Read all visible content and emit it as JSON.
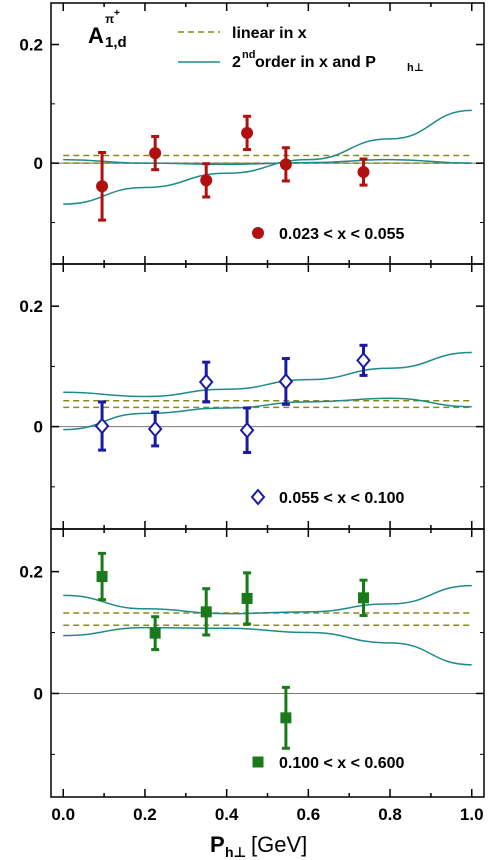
{
  "colors": {
    "frame": "#000000",
    "curve": "#1f8a8a",
    "linear": "#8a8a1a",
    "zero_line": "#777777",
    "panel1_points": "#b01010",
    "panel2_points": "#1a1aa6",
    "panel3_points": "#1a7a1a"
  },
  "asymmetry_label": {
    "main": "A",
    "sup": "π",
    "sup_plus": "+",
    "sub": "1,d"
  },
  "legend": {
    "linear_label": "linear in x",
    "second_order_label_a": "2",
    "second_order_label_sup": "nd",
    "second_order_label_b": " order in x and P",
    "second_order_label_sub": "h⊥"
  },
  "x_axis": {
    "title_main": "P",
    "title_sub": "h⊥",
    "title_unit": "[GeV]",
    "ticks": [
      "0.0",
      "0.2",
      "0.4",
      "0.6",
      "0.8",
      "1.0"
    ]
  },
  "chart_data": [
    {
      "type": "scatter",
      "x_range_label": "0.023 < x < 0.055",
      "marker": "filled-circle",
      "xlim": [
        -0.03,
        1.03
      ],
      "ylim": [
        -0.17,
        0.27
      ],
      "y_ticks": [
        "0.2",
        "0"
      ],
      "points": [
        {
          "x": 0.095,
          "y": -0.039,
          "err": 0.057
        },
        {
          "x": 0.225,
          "y": 0.017,
          "err": 0.028
        },
        {
          "x": 0.35,
          "y": -0.029,
          "err": 0.028
        },
        {
          "x": 0.45,
          "y": 0.051,
          "err": 0.028
        },
        {
          "x": 0.545,
          "y": -0.002,
          "err": 0.028
        },
        {
          "x": 0.735,
          "y": -0.015,
          "err": 0.022
        }
      ],
      "linear_band": [
        0.0,
        0.013
      ],
      "curves": [
        {
          "x": [
            0.0,
            0.2,
            0.4,
            0.6,
            0.8,
            1.0
          ],
          "y": [
            -0.069,
            -0.041,
            -0.017,
            0.006,
            0.041,
            0.089
          ]
        },
        {
          "x": [
            0.0,
            0.2,
            0.4,
            0.6,
            0.8,
            1.0
          ],
          "y": [
            0.006,
            0.0,
            -0.002,
            0.001,
            0.006,
            0.0
          ]
        }
      ]
    },
    {
      "type": "scatter",
      "x_range_label": "0.055 < x < 0.100",
      "marker": "open-diamond",
      "xlim": [
        -0.03,
        1.03
      ],
      "ylim": [
        -0.17,
        0.27
      ],
      "y_ticks": [
        "0.2",
        "0"
      ],
      "points": [
        {
          "x": 0.095,
          "y": 0.001,
          "err": 0.04
        },
        {
          "x": 0.225,
          "y": -0.004,
          "err": 0.028
        },
        {
          "x": 0.35,
          "y": 0.074,
          "err": 0.033
        },
        {
          "x": 0.45,
          "y": -0.006,
          "err": 0.037
        },
        {
          "x": 0.545,
          "y": 0.075,
          "err": 0.038
        },
        {
          "x": 0.735,
          "y": 0.11,
          "err": 0.025
        }
      ],
      "linear_band": [
        0.032,
        0.043
      ],
      "curves": [
        {
          "x": [
            0.0,
            0.2,
            0.4,
            0.6,
            0.8,
            1.0
          ],
          "y": [
            0.057,
            0.05,
            0.062,
            0.078,
            0.097,
            0.123
          ]
        },
        {
          "x": [
            0.0,
            0.2,
            0.4,
            0.6,
            0.8,
            1.0
          ],
          "y": [
            -0.005,
            0.022,
            0.031,
            0.041,
            0.047,
            0.033
          ]
        }
      ]
    },
    {
      "type": "scatter",
      "x_range_label": "0.100 < x < 0.600",
      "marker": "filled-square",
      "xlim": [
        -0.03,
        1.03
      ],
      "ylim": [
        -0.17,
        0.27
      ],
      "y_ticks": [
        "0.2",
        "0"
      ],
      "points": [
        {
          "x": 0.095,
          "y": 0.192,
          "err": 0.038
        },
        {
          "x": 0.225,
          "y": 0.099,
          "err": 0.027
        },
        {
          "x": 0.35,
          "y": 0.134,
          "err": 0.038
        },
        {
          "x": 0.45,
          "y": 0.156,
          "err": 0.042
        },
        {
          "x": 0.545,
          "y": -0.04,
          "err": 0.05
        },
        {
          "x": 0.735,
          "y": 0.157,
          "err": 0.029
        }
      ],
      "linear_band": [
        0.112,
        0.132
      ],
      "curves": [
        {
          "x": [
            0.0,
            0.2,
            0.4,
            0.6,
            0.8,
            1.0
          ],
          "y": [
            0.161,
            0.139,
            0.131,
            0.134,
            0.147,
            0.177
          ]
        },
        {
          "x": [
            0.0,
            0.2,
            0.4,
            0.6,
            0.8,
            1.0
          ],
          "y": [
            0.095,
            0.108,
            0.107,
            0.1,
            0.083,
            0.047
          ]
        }
      ]
    }
  ]
}
